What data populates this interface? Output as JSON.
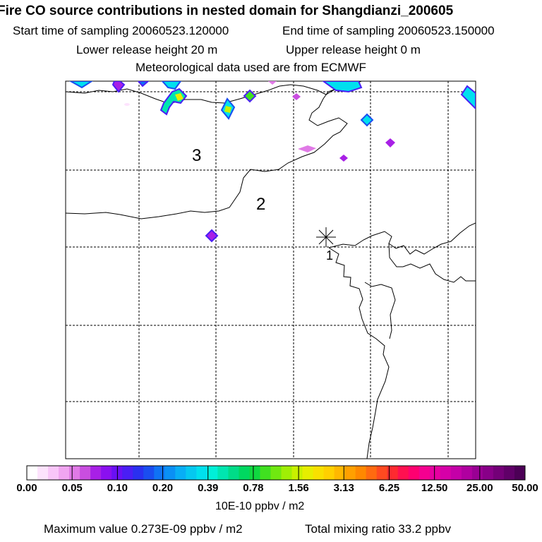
{
  "header": {
    "title": "Fire CO source contributions in nested domain for Shangdianzi_200605",
    "start_label": "Start time of sampling 20060523.120000",
    "end_label": "End time of sampling 20060523.150000",
    "lower_label": "Lower release height   20 m",
    "upper_label": "Upper release height    0 m",
    "met_label": "Meteorological data used are from ECMWF"
  },
  "map": {
    "station_marker": "asterisk-marker",
    "contour_labels": [
      "3",
      "2",
      "1"
    ]
  },
  "legend": {
    "ticks": [
      "0.00",
      "0.05",
      "0.10",
      "0.20",
      "0.39",
      "0.78",
      "1.56",
      "3.13",
      "6.25",
      "12.50",
      "25.00",
      "50.00"
    ],
    "units": "10E-10 ppbv / m2",
    "colors": [
      "#ffffff",
      "#fde3fd",
      "#f9c6f9",
      "#f0a5f0",
      "#e07ae6",
      "#c94ee0",
      "#a820e6",
      "#8a10f0",
      "#6a10f5",
      "#4a1ef5",
      "#2a30f0",
      "#1a4df0",
      "#0f72f5",
      "#0a90f5",
      "#08aef5",
      "#05c8f0",
      "#00e0ee",
      "#00f0d8",
      "#00e6b0",
      "#00dc88",
      "#00d860",
      "#10d840",
      "#40e020",
      "#70e810",
      "#a0ee05",
      "#c8f000",
      "#e6ee00",
      "#f8e000",
      "#ffd000",
      "#ffb800",
      "#ffa000",
      "#ff8800",
      "#ff6a10",
      "#ff4a20",
      "#ff2a30",
      "#ff1050",
      "#ff0070",
      "#f50090",
      "#e600a0",
      "#d600a8",
      "#c400a8",
      "#b000a0",
      "#9a0094",
      "#880088",
      "#740078",
      "#600068",
      "#4c0056"
    ]
  },
  "footer": {
    "max_value": "Maximum value  0.273E-09 ppbv / m2",
    "total": "Total mixing ratio       33.2 ppbv"
  }
}
